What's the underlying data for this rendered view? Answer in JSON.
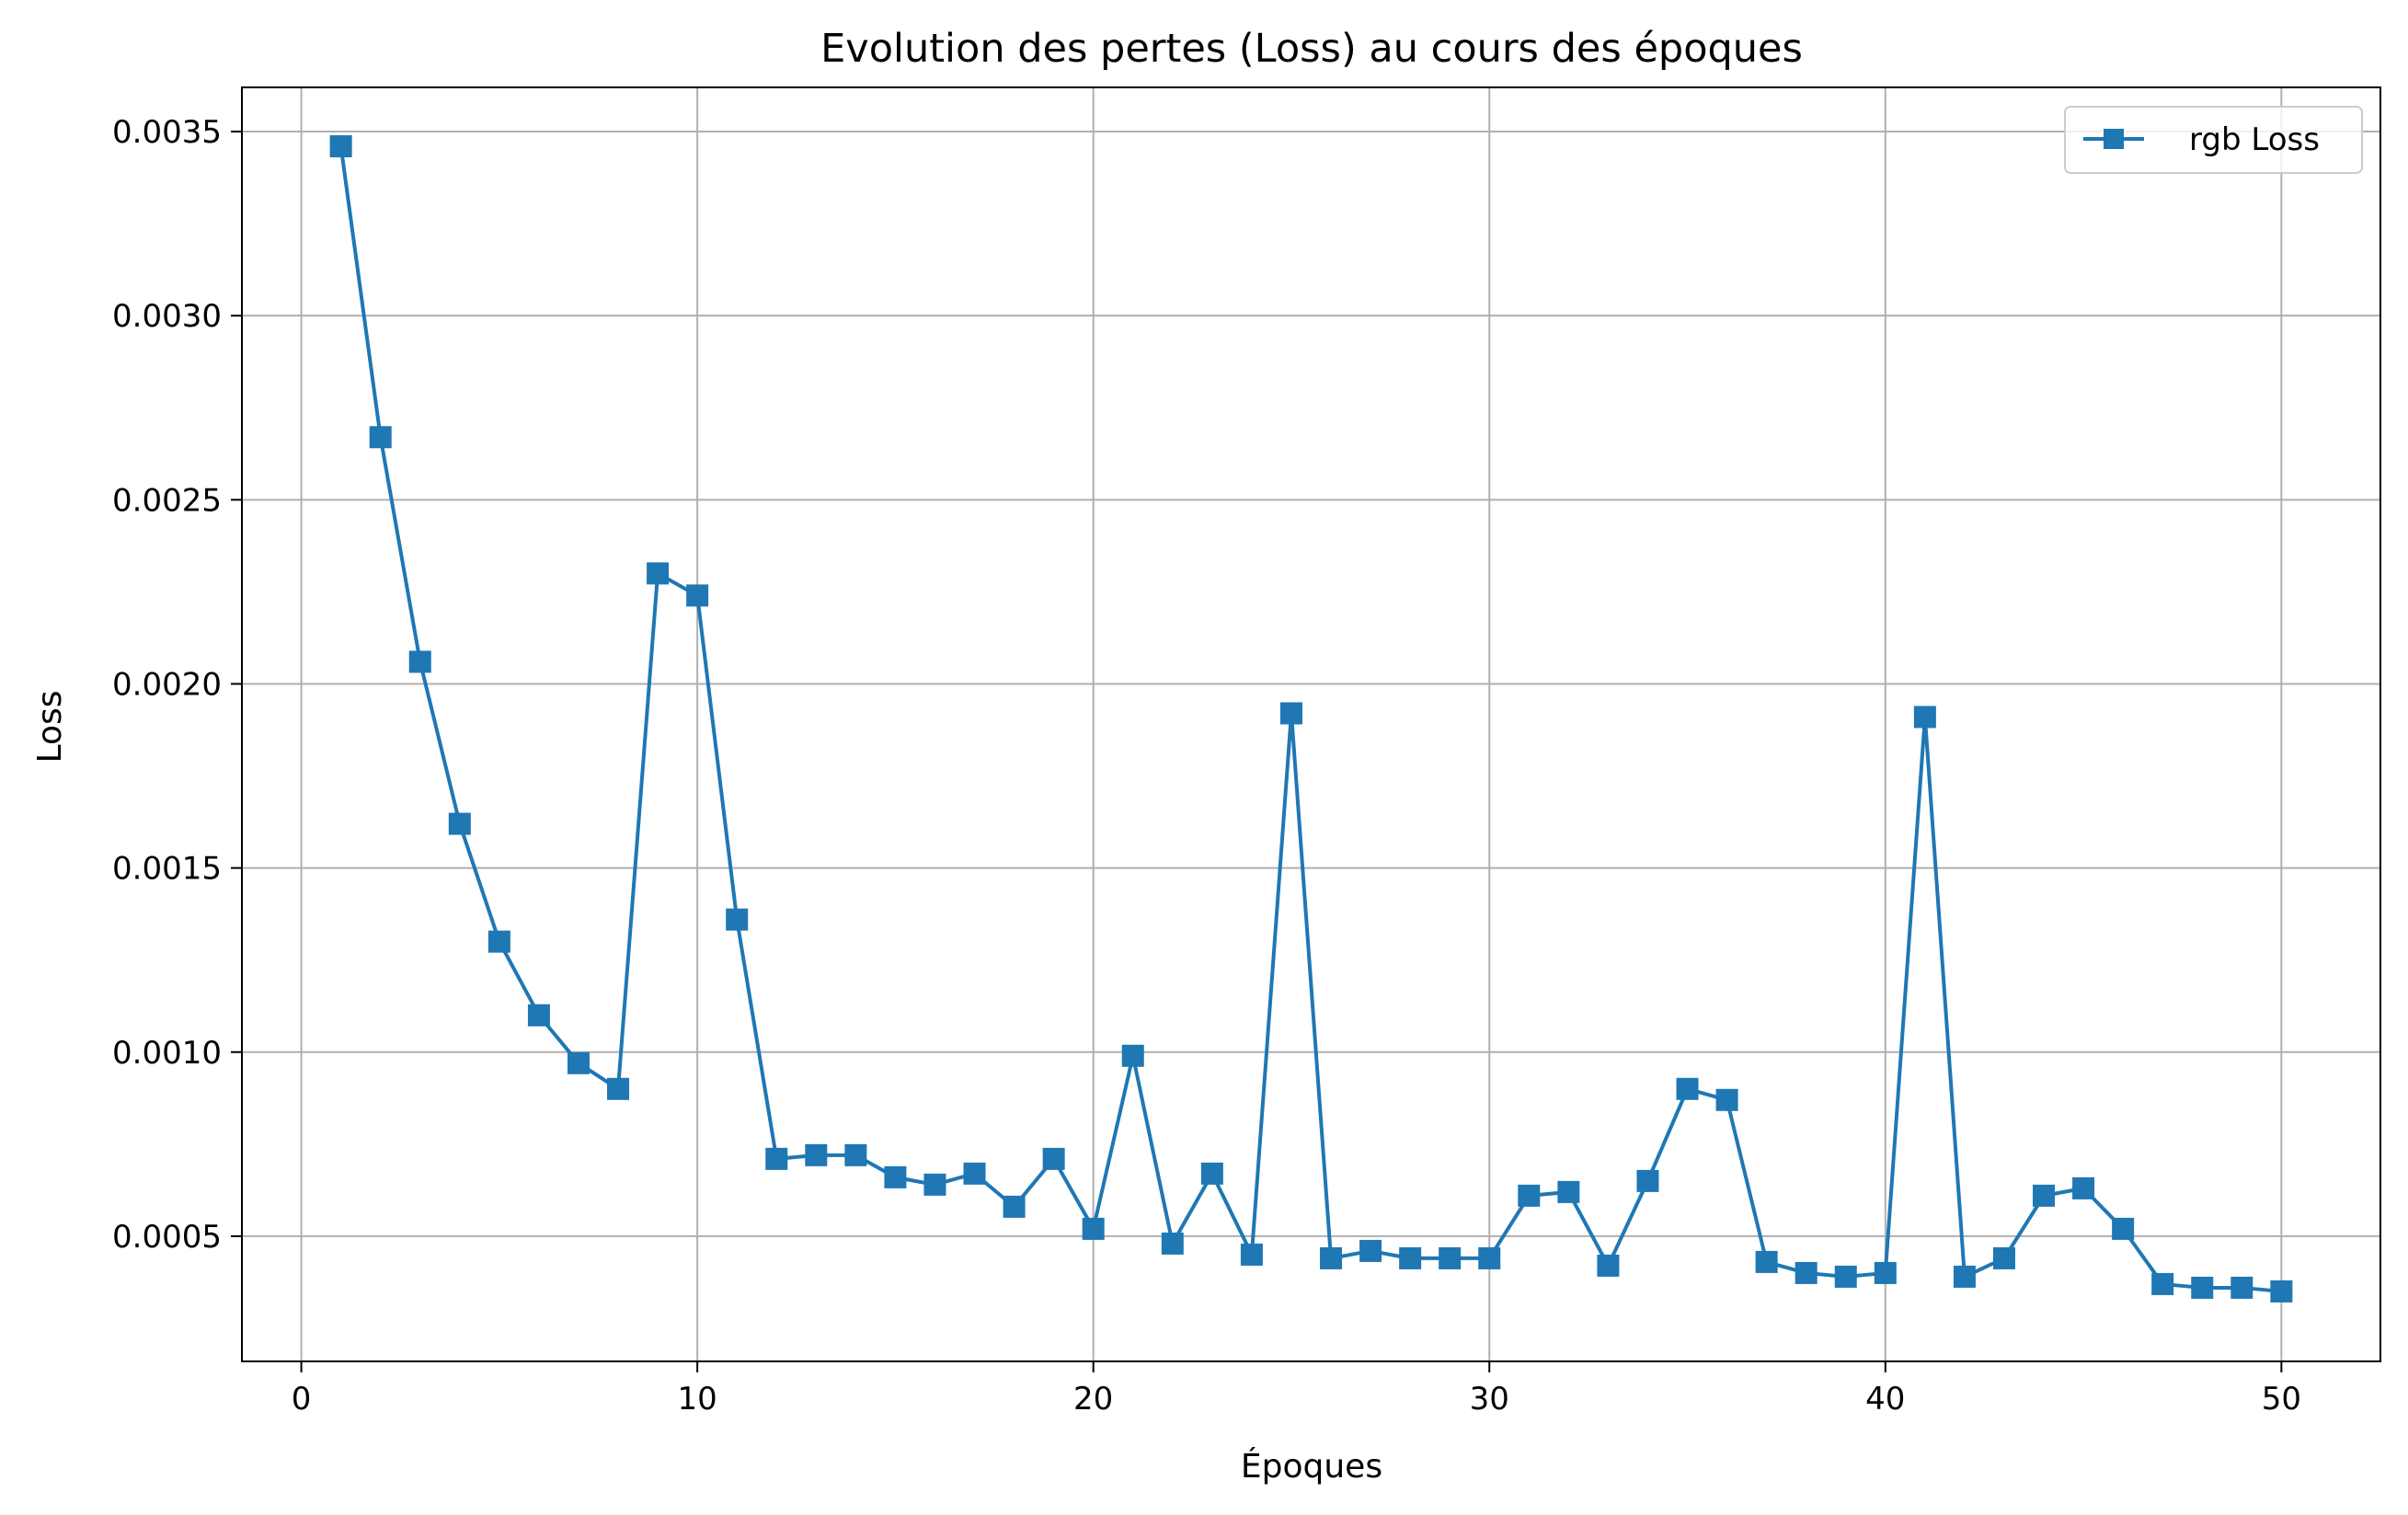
{
  "chart_data": {
    "type": "line",
    "title": "Evolution des pertes (Loss) au cours des époques",
    "xlabel": "Époques",
    "ylabel": "Loss",
    "xlim": [
      -1.5,
      52.5
    ],
    "ylim": [
      0.00016,
      0.00362
    ],
    "xticks": [
      0,
      10,
      20,
      30,
      40,
      50
    ],
    "xtick_labels": [
      "0",
      "10",
      "20",
      "30",
      "40",
      "50"
    ],
    "yticks": [
      0.0005,
      0.001,
      0.0015,
      0.002,
      0.0025,
      0.003,
      0.0035
    ],
    "ytick_labels": [
      "0.0005",
      "0.0010",
      "0.0015",
      "0.0020",
      "0.0025",
      "0.0030",
      "0.0035"
    ],
    "grid": true,
    "legend_position": "top-right",
    "color": "#1f77b4",
    "marker": "square",
    "series": [
      {
        "name": "rgb Loss",
        "x": [
          1,
          2,
          3,
          4,
          5,
          6,
          7,
          8,
          9,
          10,
          11,
          12,
          13,
          14,
          15,
          16,
          17,
          18,
          19,
          20,
          21,
          22,
          23,
          24,
          25,
          26,
          27,
          28,
          29,
          30,
          31,
          32,
          33,
          34,
          35,
          36,
          37,
          38,
          39,
          40,
          41,
          42,
          43,
          44,
          45,
          46,
          47,
          48,
          49,
          50
        ],
        "y": [
          0.00346,
          0.00267,
          0.00206,
          0.00162,
          0.0013,
          0.0011,
          0.00097,
          0.0009,
          0.0023,
          0.00224,
          0.00136,
          0.00071,
          0.00072,
          0.00072,
          0.00066,
          0.00064,
          0.00067,
          0.00058,
          0.00071,
          0.00052,
          0.00099,
          0.00048,
          0.00067,
          0.00045,
          0.00192,
          0.00044,
          0.00046,
          0.00044,
          0.00044,
          0.00044,
          0.00061,
          0.00062,
          0.00042,
          0.00065,
          0.0009,
          0.00087,
          0.00043,
          0.0004,
          0.00039,
          0.0004,
          0.00191,
          0.00039,
          0.00044,
          0.00061,
          0.00063,
          0.00052,
          0.00037,
          0.00036,
          0.00036,
          0.00035
        ]
      }
    ]
  }
}
